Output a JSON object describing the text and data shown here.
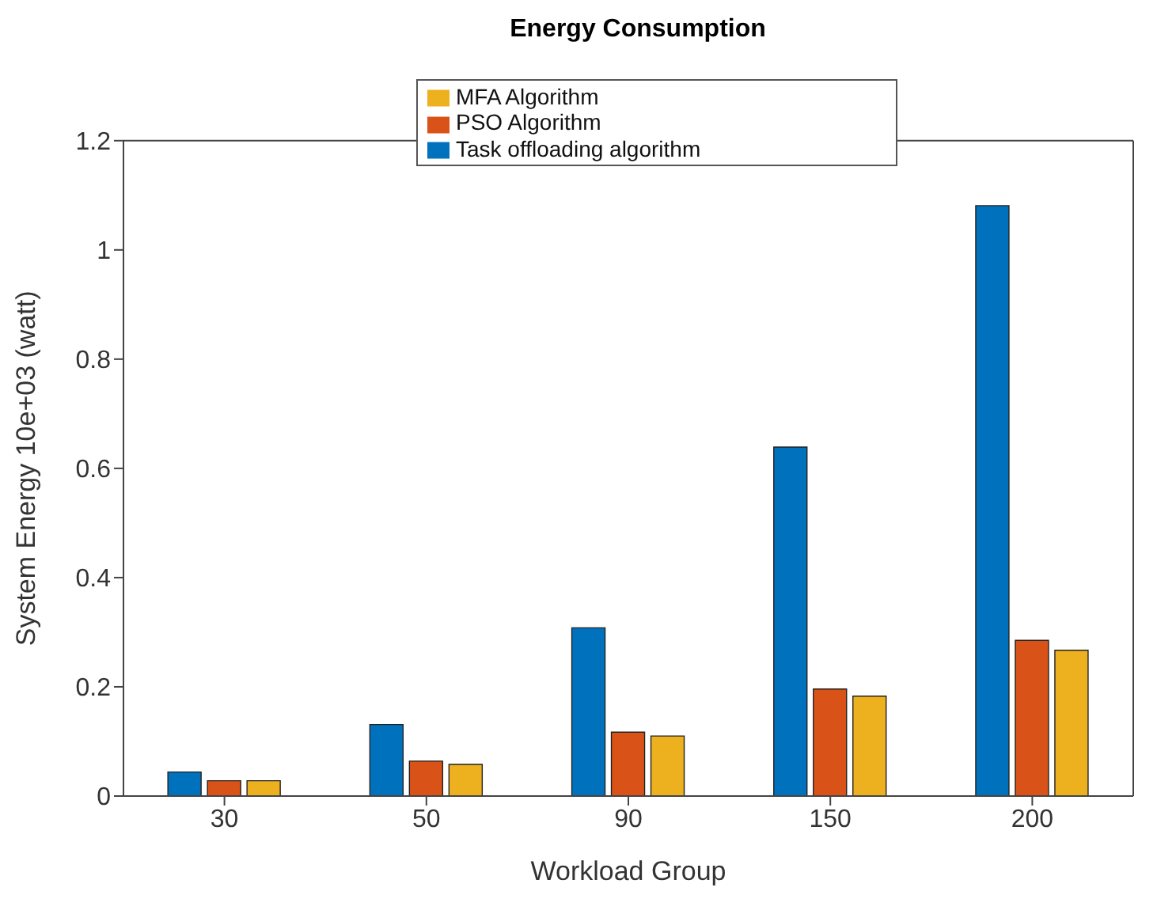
{
  "chart_data": {
    "type": "bar",
    "title": "Energy Consumption",
    "xlabel": "Workload Group",
    "ylabel": "System Energy 10e+03 (watt)",
    "categories": [
      "30",
      "50",
      "90",
      "150",
      "200"
    ],
    "series": [
      {
        "name": "Task offloading algorithm",
        "color": "#0072bd",
        "values": [
          0.044,
          0.131,
          0.308,
          0.639,
          1.081
        ]
      },
      {
        "name": "PSO Algorithm",
        "color": "#d95319",
        "values": [
          0.028,
          0.064,
          0.117,
          0.196,
          0.285
        ]
      },
      {
        "name": "MFA Algorithm",
        "color": "#edb120",
        "values": [
          0.028,
          0.058,
          0.11,
          0.183,
          0.267
        ]
      }
    ],
    "ylim": [
      0,
      1.2
    ],
    "yticks": [
      0,
      0.2,
      0.4,
      0.6,
      0.8,
      1,
      1.2
    ],
    "grid": false,
    "legend": "top"
  }
}
